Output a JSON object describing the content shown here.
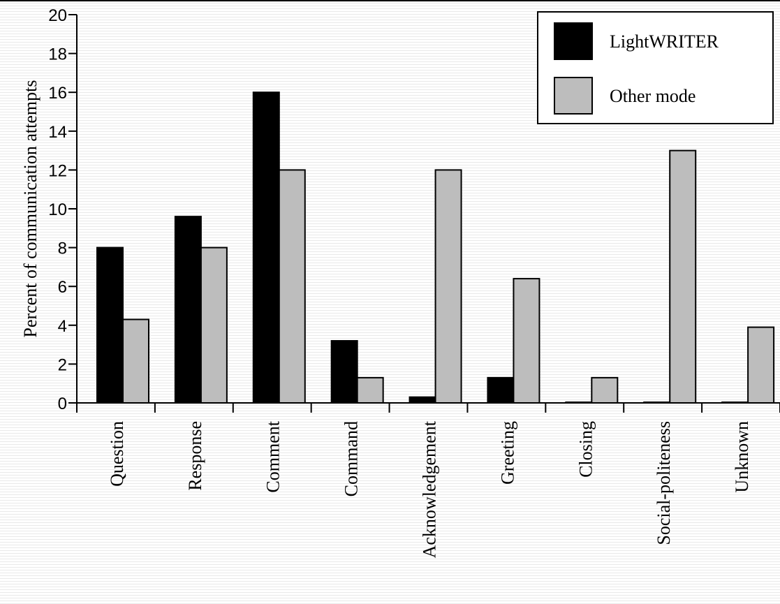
{
  "chart_data": {
    "type": "bar",
    "title": "",
    "xlabel": "",
    "ylabel": "Percent of communication attempts",
    "ylim": [
      0,
      20
    ],
    "yticks": [
      0,
      2,
      4,
      6,
      8,
      10,
      12,
      14,
      16,
      18,
      20
    ],
    "categories": [
      "Question",
      "Response",
      "Comment",
      "Command",
      "Acknowledgement",
      "Greeting",
      "Closing",
      "Social-politeness",
      "Unknown"
    ],
    "series": [
      {
        "name": "LightWRITER",
        "color": "#000000",
        "values": [
          8.0,
          9.6,
          16.0,
          3.2,
          0.3,
          1.3,
          0,
          0,
          0
        ]
      },
      {
        "name": "Other mode",
        "color": "#bdbdbd",
        "values": [
          4.3,
          8.0,
          12.0,
          1.3,
          12.0,
          6.4,
          1.3,
          13.0,
          3.9
        ]
      }
    ],
    "grid": false,
    "legend_position": "top-right"
  }
}
